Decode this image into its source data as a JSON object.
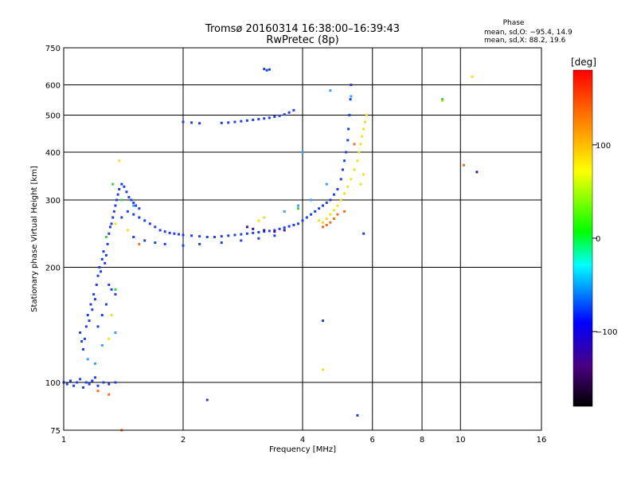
{
  "chart_data": {
    "type": "scatter",
    "title": "Tromsø 20160314 16:38:00–16:39:43",
    "subtitle": "RwPretec (8p)",
    "xlabel": "Frequency [MHz]",
    "ylabel": "Stationary phase Virtual Height [km]",
    "x_scale": "log",
    "y_scale": "log",
    "xlim": [
      1,
      16
    ],
    "ylim": [
      75,
      750
    ],
    "x_ticks": [
      1,
      2,
      4,
      6,
      8,
      10,
      16
    ],
    "x_tick_labels": [
      "1",
      "2",
      "4",
      "6",
      "8",
      "10",
      "16"
    ],
    "y_ticks": [
      75,
      100,
      200,
      300,
      400,
      500,
      600,
      750
    ],
    "y_tick_labels": [
      "75",
      "100",
      "200",
      "300",
      "400",
      "500",
      "600",
      "750"
    ],
    "grid": true,
    "stats": {
      "heading": "Phase",
      "line_o": "mean, sd,O: −95.4, 14.9",
      "line_x": "mean, sd,X:  88.2, 19.6"
    },
    "colorbar": {
      "label": "[deg]",
      "range": [
        -180,
        180
      ],
      "ticks": [
        100,
        0,
        -100
      ],
      "tick_labels": [
        "100",
        "0",
        "−100"
      ]
    },
    "series": [
      {
        "color": "#2040e0",
        "points": [
          [
            1.0,
            100
          ],
          [
            1.02,
            99
          ],
          [
            1.04,
            101
          ],
          [
            1.06,
            98
          ],
          [
            1.08,
            100
          ],
          [
            1.1,
            102
          ],
          [
            1.12,
            97
          ],
          [
            1.14,
            100
          ],
          [
            1.16,
            99
          ],
          [
            1.18,
            101
          ],
          [
            1.2,
            103
          ],
          [
            1.22,
            98
          ],
          [
            1.26,
            100
          ],
          [
            1.3,
            99
          ],
          [
            1.35,
            100
          ],
          [
            1.1,
            135
          ],
          [
            1.11,
            128
          ],
          [
            1.12,
            122
          ],
          [
            1.13,
            130
          ],
          [
            1.14,
            140
          ],
          [
            1.15,
            150
          ],
          [
            1.16,
            145
          ],
          [
            1.17,
            160
          ],
          [
            1.18,
            155
          ],
          [
            1.19,
            170
          ],
          [
            1.2,
            165
          ],
          [
            1.21,
            180
          ],
          [
            1.22,
            190
          ],
          [
            1.23,
            200
          ],
          [
            1.24,
            195
          ],
          [
            1.25,
            210
          ],
          [
            1.26,
            220
          ],
          [
            1.27,
            205
          ],
          [
            1.28,
            215
          ],
          [
            1.29,
            230
          ],
          [
            1.3,
            245
          ],
          [
            1.31,
            255
          ],
          [
            1.32,
            260
          ],
          [
            1.33,
            270
          ],
          [
            1.34,
            280
          ],
          [
            1.35,
            290
          ],
          [
            1.36,
            300
          ],
          [
            1.37,
            310
          ],
          [
            1.38,
            320
          ],
          [
            1.4,
            330
          ],
          [
            1.42,
            325
          ],
          [
            1.44,
            315
          ],
          [
            1.46,
            305
          ],
          [
            1.48,
            300
          ],
          [
            1.5,
            295
          ],
          [
            1.52,
            290
          ],
          [
            1.55,
            285
          ],
          [
            1.3,
            180
          ],
          [
            1.32,
            175
          ],
          [
            1.35,
            170
          ],
          [
            1.28,
            160
          ],
          [
            1.25,
            150
          ],
          [
            1.22,
            140
          ],
          [
            1.4,
            270
          ],
          [
            1.45,
            280
          ],
          [
            1.5,
            275
          ],
          [
            1.55,
            270
          ],
          [
            1.6,
            265
          ],
          [
            1.65,
            260
          ],
          [
            1.7,
            255
          ],
          [
            1.75,
            250
          ],
          [
            1.8,
            248
          ],
          [
            1.85,
            246
          ],
          [
            1.9,
            245
          ],
          [
            1.95,
            244
          ],
          [
            2.0,
            243
          ],
          [
            2.1,
            242
          ],
          [
            2.2,
            241
          ],
          [
            2.3,
            240
          ],
          [
            2.4,
            240
          ],
          [
            2.5,
            241
          ],
          [
            2.6,
            242
          ],
          [
            2.7,
            243
          ],
          [
            2.8,
            244
          ],
          [
            2.9,
            245
          ],
          [
            3.0,
            246
          ],
          [
            3.1,
            247
          ],
          [
            3.2,
            248
          ],
          [
            3.3,
            249
          ],
          [
            3.4,
            250
          ],
          [
            3.5,
            252
          ],
          [
            3.6,
            254
          ],
          [
            3.7,
            256
          ],
          [
            3.8,
            258
          ],
          [
            3.9,
            260
          ],
          [
            4.0,
            265
          ],
          [
            4.1,
            270
          ],
          [
            4.2,
            275
          ],
          [
            4.3,
            280
          ],
          [
            4.4,
            285
          ],
          [
            4.5,
            290
          ],
          [
            4.6,
            295
          ],
          [
            4.7,
            300
          ],
          [
            4.8,
            310
          ],
          [
            4.9,
            320
          ],
          [
            5.0,
            340
          ],
          [
            5.05,
            360
          ],
          [
            5.1,
            380
          ],
          [
            5.15,
            400
          ],
          [
            5.2,
            430
          ],
          [
            5.22,
            460
          ],
          [
            5.25,
            500
          ],
          [
            5.28,
            550
          ],
          [
            5.3,
            600
          ],
          [
            1.5,
            240
          ],
          [
            1.6,
            235
          ],
          [
            1.7,
            232
          ],
          [
            1.8,
            230
          ],
          [
            2.0,
            228
          ],
          [
            2.2,
            230
          ],
          [
            2.5,
            232
          ],
          [
            2.8,
            235
          ],
          [
            3.1,
            238
          ],
          [
            3.4,
            242
          ],
          [
            2.0,
            480
          ],
          [
            2.1,
            478
          ],
          [
            2.2,
            476
          ],
          [
            2.5,
            477
          ],
          [
            2.6,
            478
          ],
          [
            2.7,
            480
          ],
          [
            2.8,
            482
          ],
          [
            2.9,
            484
          ],
          [
            3.0,
            486
          ],
          [
            3.1,
            488
          ],
          [
            3.2,
            490
          ],
          [
            3.3,
            492
          ],
          [
            3.4,
            495
          ],
          [
            3.5,
            498
          ],
          [
            3.6,
            502
          ],
          [
            3.7,
            508
          ],
          [
            3.8,
            515
          ],
          [
            3.2,
            660
          ],
          [
            3.25,
            655
          ],
          [
            3.3,
            658
          ],
          [
            2.3,
            90
          ],
          [
            5.5,
            82
          ],
          [
            4.5,
            145
          ],
          [
            5.7,
            245
          ]
        ]
      },
      {
        "color": "#3aa0ff",
        "points": [
          [
            1.15,
            115
          ],
          [
            1.25,
            125
          ],
          [
            1.35,
            135
          ],
          [
            3.6,
            280
          ],
          [
            3.9,
            290
          ],
          [
            4.2,
            300
          ],
          [
            4.6,
            330
          ],
          [
            4.7,
            580
          ],
          [
            5.3,
            560
          ],
          [
            1.2,
            112
          ],
          [
            1.5,
            290
          ],
          [
            4.0,
            400
          ]
        ]
      },
      {
        "color": "#f0e020",
        "points": [
          [
            1.38,
            380
          ],
          [
            1.35,
            260
          ],
          [
            1.32,
            150
          ],
          [
            1.3,
            130
          ],
          [
            1.45,
            250
          ],
          [
            4.4,
            265
          ],
          [
            4.5,
            262
          ],
          [
            4.6,
            268
          ],
          [
            4.7,
            275
          ],
          [
            4.8,
            282
          ],
          [
            4.9,
            290
          ],
          [
            5.0,
            300
          ],
          [
            5.1,
            312
          ],
          [
            5.2,
            325
          ],
          [
            5.3,
            340
          ],
          [
            5.4,
            360
          ],
          [
            5.5,
            380
          ],
          [
            5.55,
            400
          ],
          [
            5.6,
            420
          ],
          [
            5.65,
            440
          ],
          [
            5.7,
            460
          ],
          [
            5.75,
            480
          ],
          [
            5.8,
            500
          ],
          [
            5.6,
            330
          ],
          [
            5.7,
            350
          ],
          [
            3.2,
            270
          ],
          [
            3.1,
            265
          ],
          [
            4.5,
            108
          ],
          [
            9.0,
            545
          ],
          [
            10.7,
            630
          ]
        ]
      },
      {
        "color": "#f07020",
        "points": [
          [
            1.22,
            95
          ],
          [
            1.3,
            93
          ],
          [
            1.4,
            75
          ],
          [
            1.55,
            230
          ],
          [
            4.5,
            255
          ],
          [
            4.6,
            258
          ],
          [
            4.7,
            262
          ],
          [
            4.8,
            268
          ],
          [
            4.9,
            275
          ],
          [
            5.1,
            280
          ],
          [
            10.2,
            370
          ],
          [
            5.4,
            420
          ]
        ]
      },
      {
        "color": "#40d040",
        "points": [
          [
            1.33,
            330
          ],
          [
            1.28,
            240
          ],
          [
            1.4,
            300
          ],
          [
            9.0,
            550
          ],
          [
            1.35,
            175
          ],
          [
            3.9,
            285
          ]
        ]
      },
      {
        "color": "#4010a0",
        "points": [
          [
            2.9,
            255
          ],
          [
            3.0,
            252
          ],
          [
            3.2,
            250
          ],
          [
            3.4,
            248
          ],
          [
            3.6,
            250
          ],
          [
            11.0,
            355
          ]
        ]
      }
    ]
  }
}
